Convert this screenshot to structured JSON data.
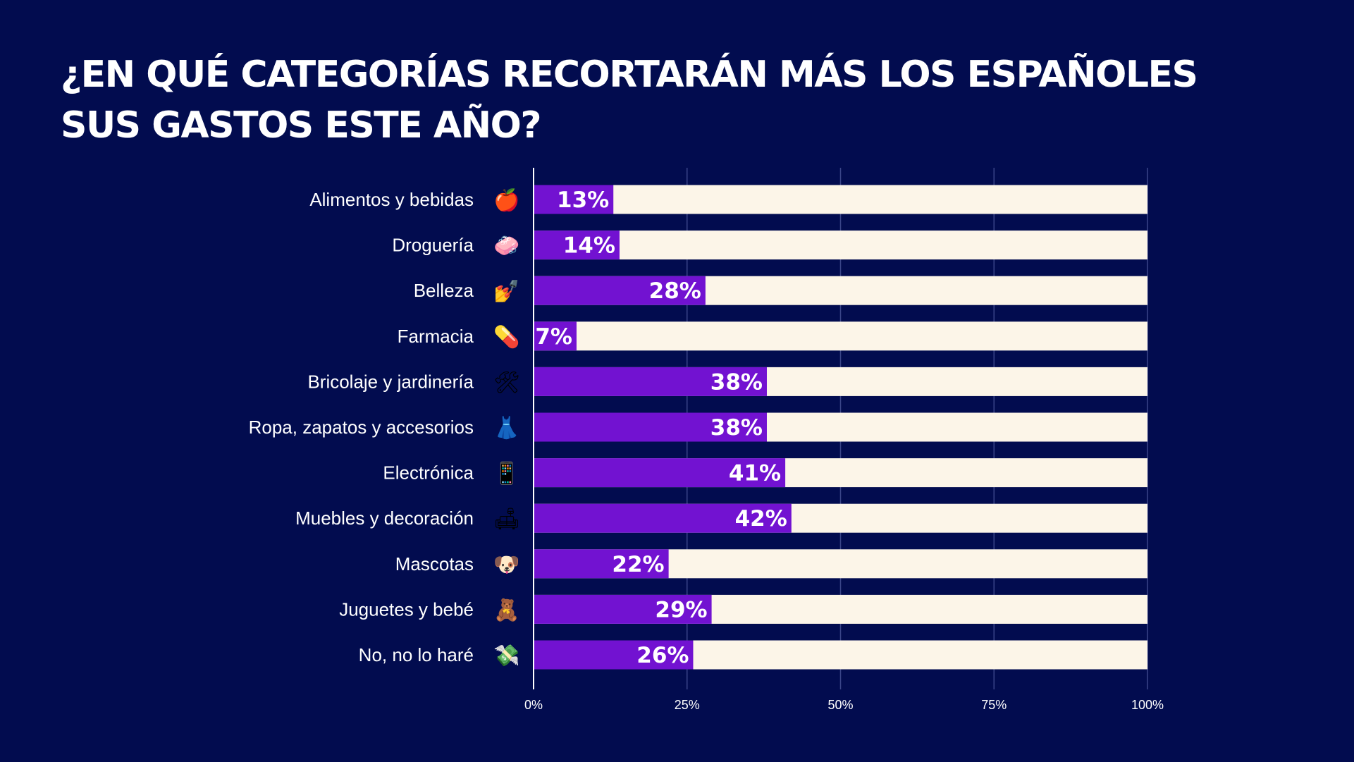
{
  "title": {
    "line1": "¿EN QUÉ CATEGORÍAS RECORTARÁN MÁS LOS ESPAÑOLES",
    "line2": "SUS GASTOS ESTE AÑO?"
  },
  "colors": {
    "background": "#020c4f",
    "bar_value": "#7212d1",
    "bar_track": "#fcf5e8",
    "grid": "#3a4588",
    "text": "#ffffff"
  },
  "chart_data": {
    "type": "bar",
    "orientation": "horizontal",
    "stacked_to": 100,
    "title": "¿EN QUÉ CATEGORÍAS RECORTARÁN MÁS LOS ESPAÑOLES SUS GASTOS ESTE AÑO?",
    "xlabel": "",
    "ylabel": "",
    "xlim": [
      0,
      100
    ],
    "grid": true,
    "x_ticks": [
      "0%",
      "25%",
      "50%",
      "75%",
      "100%"
    ],
    "x_tick_values": [
      0,
      25,
      50,
      75,
      100
    ],
    "categories": [
      "Alimentos y bebidas",
      "Droguería",
      "Belleza",
      "Farmacia",
      "Bricolaje y jardinería",
      "Ropa, zapatos y accesorios",
      "Electrónica",
      "Muebles y decoración",
      "Mascotas",
      "Juguetes y bebé",
      "No, no lo haré"
    ],
    "icons": [
      "apple-icon",
      "soap-icon",
      "nail-polish-icon",
      "pill-icon",
      "tools-icon",
      "dress-icon",
      "mobile-phone-icon",
      "couch-lamp-icon",
      "dog-icon",
      "teddy-bear-icon",
      "money-wings-icon"
    ],
    "values": [
      13,
      14,
      28,
      7,
      38,
      38,
      41,
      42,
      22,
      29,
      26
    ],
    "value_labels": [
      "13%",
      "14%",
      "28%",
      "7%",
      "38%",
      "38%",
      "41%",
      "42%",
      "22%",
      "29%",
      "26%"
    ]
  }
}
